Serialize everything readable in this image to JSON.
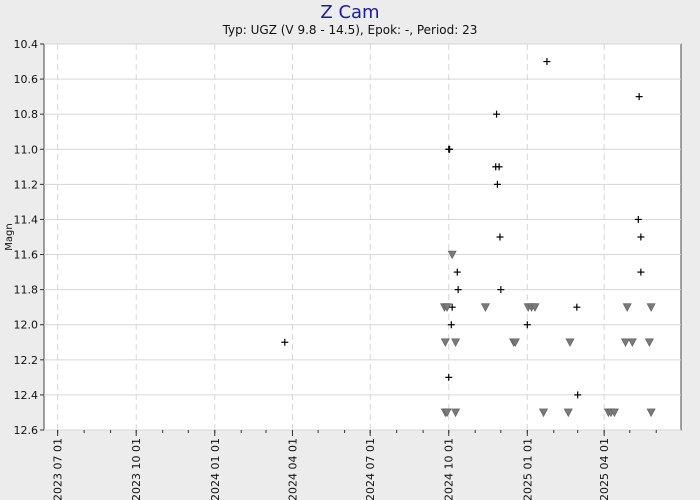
{
  "chart_data": {
    "type": "scatter",
    "title": "Z Cam",
    "subtitle": "Typ: UGZ (V 9.8 - 14.5), Epok: -, Period: 23",
    "xlabel": "",
    "ylabel": "Magn",
    "y_inverted": true,
    "ylim": [
      10.4,
      12.6
    ],
    "xlim": [
      "2023-06-15",
      "2025-06-30"
    ],
    "y_ticks": [
      10.4,
      10.6,
      10.8,
      11.0,
      11.2,
      11.4,
      11.6,
      11.8,
      12.0,
      12.2,
      12.4,
      12.6
    ],
    "y_tick_labels": [
      "10.4",
      "10.6",
      "10.8",
      "11.0",
      "11.2",
      "11.4",
      "11.6",
      "11.8",
      "12.0",
      "12.2",
      "12.4",
      "12.6"
    ],
    "x_ticks": [
      "2023-07-01",
      "2023-10-01",
      "2024-01-01",
      "2024-04-01",
      "2024-07-01",
      "2024-10-01",
      "2025-01-01",
      "2025-04-01"
    ],
    "x_tick_labels": [
      "2023 07 01",
      "2023 10 01",
      "2024 01 01",
      "2024 04 01",
      "2024 07 01",
      "2024 10 01",
      "2025 01 01",
      "2025 04 01"
    ],
    "grid": true,
    "series": [
      {
        "marker": "plus",
        "color": "#000000",
        "points": [
          {
            "x": "2024-03-23",
            "y": 12.1
          },
          {
            "x": "2024-10-01",
            "y": 11.0
          },
          {
            "x": "2024-10-02",
            "y": 11.0
          },
          {
            "x": "2024-10-01",
            "y": 12.3
          },
          {
            "x": "2024-10-04",
            "y": 12.0
          },
          {
            "x": "2024-10-05",
            "y": 11.9
          },
          {
            "x": "2024-10-11",
            "y": 11.7
          },
          {
            "x": "2024-10-12",
            "y": 11.8
          },
          {
            "x": "2024-11-26",
            "y": 10.8
          },
          {
            "x": "2024-11-25",
            "y": 11.1
          },
          {
            "x": "2024-11-29",
            "y": 11.1
          },
          {
            "x": "2024-11-27",
            "y": 11.2
          },
          {
            "x": "2024-11-30",
            "y": 11.5
          },
          {
            "x": "2024-12-01",
            "y": 11.8
          },
          {
            "x": "2025-01-01",
            "y": 12.0
          },
          {
            "x": "2025-01-24",
            "y": 10.5
          },
          {
            "x": "2025-02-28",
            "y": 11.9
          },
          {
            "x": "2025-03-01",
            "y": 12.4
          },
          {
            "x": "2025-05-12",
            "y": 10.7
          },
          {
            "x": "2025-05-11",
            "y": 11.4
          },
          {
            "x": "2025-05-14",
            "y": 11.5
          },
          {
            "x": "2025-05-14",
            "y": 11.7
          }
        ]
      },
      {
        "marker": "triangle-down",
        "color": "#7a7a7a",
        "points": [
          {
            "x": "2024-09-26",
            "y": 11.9
          },
          {
            "x": "2024-09-29",
            "y": 11.9
          },
          {
            "x": "2024-09-27",
            "y": 12.1
          },
          {
            "x": "2024-09-27",
            "y": 12.5
          },
          {
            "x": "2024-09-29",
            "y": 12.5
          },
          {
            "x": "2024-10-05",
            "y": 11.6
          },
          {
            "x": "2024-10-09",
            "y": 12.1
          },
          {
            "x": "2024-10-09",
            "y": 12.5
          },
          {
            "x": "2024-11-13",
            "y": 11.9
          },
          {
            "x": "2024-12-16",
            "y": 12.1
          },
          {
            "x": "2024-12-18",
            "y": 12.1
          },
          {
            "x": "2025-01-02",
            "y": 11.9
          },
          {
            "x": "2025-01-06",
            "y": 11.9
          },
          {
            "x": "2025-01-10",
            "y": 11.9
          },
          {
            "x": "2025-01-20",
            "y": 12.5
          },
          {
            "x": "2025-02-18",
            "y": 12.5
          },
          {
            "x": "2025-02-20",
            "y": 12.1
          },
          {
            "x": "2025-04-06",
            "y": 12.5
          },
          {
            "x": "2025-04-09",
            "y": 12.5
          },
          {
            "x": "2025-04-13",
            "y": 12.5
          },
          {
            "x": "2025-04-26",
            "y": 12.1
          },
          {
            "x": "2025-04-28",
            "y": 11.9
          },
          {
            "x": "2025-05-04",
            "y": 12.1
          },
          {
            "x": "2025-05-26",
            "y": 11.9
          },
          {
            "x": "2025-05-24",
            "y": 12.1
          },
          {
            "x": "2025-05-26",
            "y": 12.5
          }
        ]
      }
    ]
  }
}
